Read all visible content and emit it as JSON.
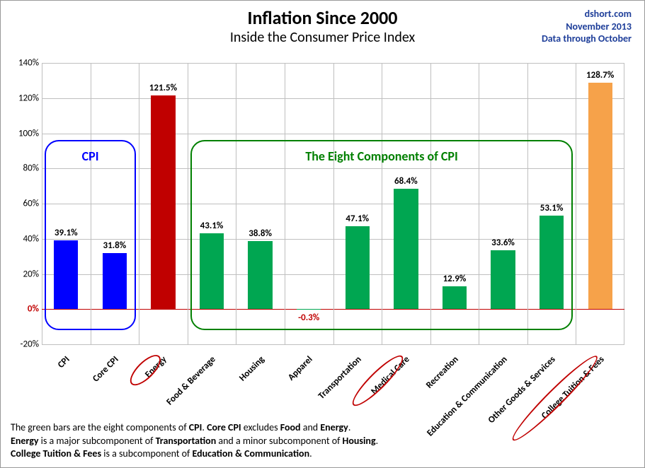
{
  "title": "Inflation Since 2000",
  "subtitle": "Inside the Consumer Price Index",
  "source": {
    "site": "dshort.com",
    "date": "November 2013",
    "through": "Data through October"
  },
  "chart": {
    "type": "bar",
    "ylim": [
      -20,
      140
    ],
    "ytick_step": 20,
    "yticks": [
      -20,
      0,
      20,
      40,
      60,
      80,
      100,
      120,
      140
    ],
    "grid_color": "#bfbfbf",
    "zero_line_color": "#c00000",
    "background_color": "#ffffff",
    "bar_width_ratio": 0.5,
    "label_fontsize": 13,
    "items": [
      {
        "label": "CPI",
        "value": 39.1,
        "color": "#0000ff",
        "display": "39.1%"
      },
      {
        "label": "Core CPI",
        "value": 31.8,
        "color": "#0000ff",
        "display": "31.8%"
      },
      {
        "label": "Energy",
        "value": 121.5,
        "color": "#c00000",
        "display": "121.5%",
        "circled": true
      },
      {
        "label": "Food & Beverage",
        "value": 43.1,
        "color": "#00a651",
        "display": "43.1%"
      },
      {
        "label": "Housing",
        "value": 38.8,
        "color": "#00a651",
        "display": "38.8%"
      },
      {
        "label": "Apparel",
        "value": -0.3,
        "color": "#00a651",
        "display": "-0.3%"
      },
      {
        "label": "Transportation",
        "value": 47.1,
        "color": "#00a651",
        "display": "47.1%"
      },
      {
        "label": "Medical Care",
        "value": 68.4,
        "color": "#00a651",
        "display": "68.4%",
        "circled": true
      },
      {
        "label": "Recreation",
        "value": 12.9,
        "color": "#00a651",
        "display": "12.9%"
      },
      {
        "label": "Education & Communication",
        "value": 33.6,
        "color": "#00a651",
        "display": "33.6%"
      },
      {
        "label": "Other Goods & Services",
        "value": 53.1,
        "color": "#00a651",
        "display": "53.1%"
      },
      {
        "label": "College Tuition & Fees",
        "value": 128.7,
        "color": "#f6a24a",
        "display": "128.7%",
        "circled": true
      }
    ],
    "groups": [
      {
        "label": "CPI",
        "start": 0,
        "end": 1,
        "color": "#0000ff"
      },
      {
        "label": "The Eight Components of CPI",
        "start": 3,
        "end": 10,
        "color": "#008000"
      }
    ]
  },
  "footer": {
    "line1_a": "The green bars are the eight components of ",
    "line1_b": "CPI",
    "line1_c": ". ",
    "line1_d": "Core CPI",
    "line1_e": " excludes ",
    "line1_f": "Food",
    "line1_g": " and ",
    "line1_h": "Energy",
    "line1_i": ".",
    "line2_a": "Energy",
    "line2_b": " is a major subcomponent of ",
    "line2_c": "Transportation",
    "line2_d": " and a minor subcomponent of ",
    "line2_e": "Housing",
    "line2_f": ".",
    "line3_a": "College Tuition & Fees",
    "line3_b": " is a subcomponent of ",
    "line3_c": "Education & Communication",
    "line3_d": "."
  }
}
